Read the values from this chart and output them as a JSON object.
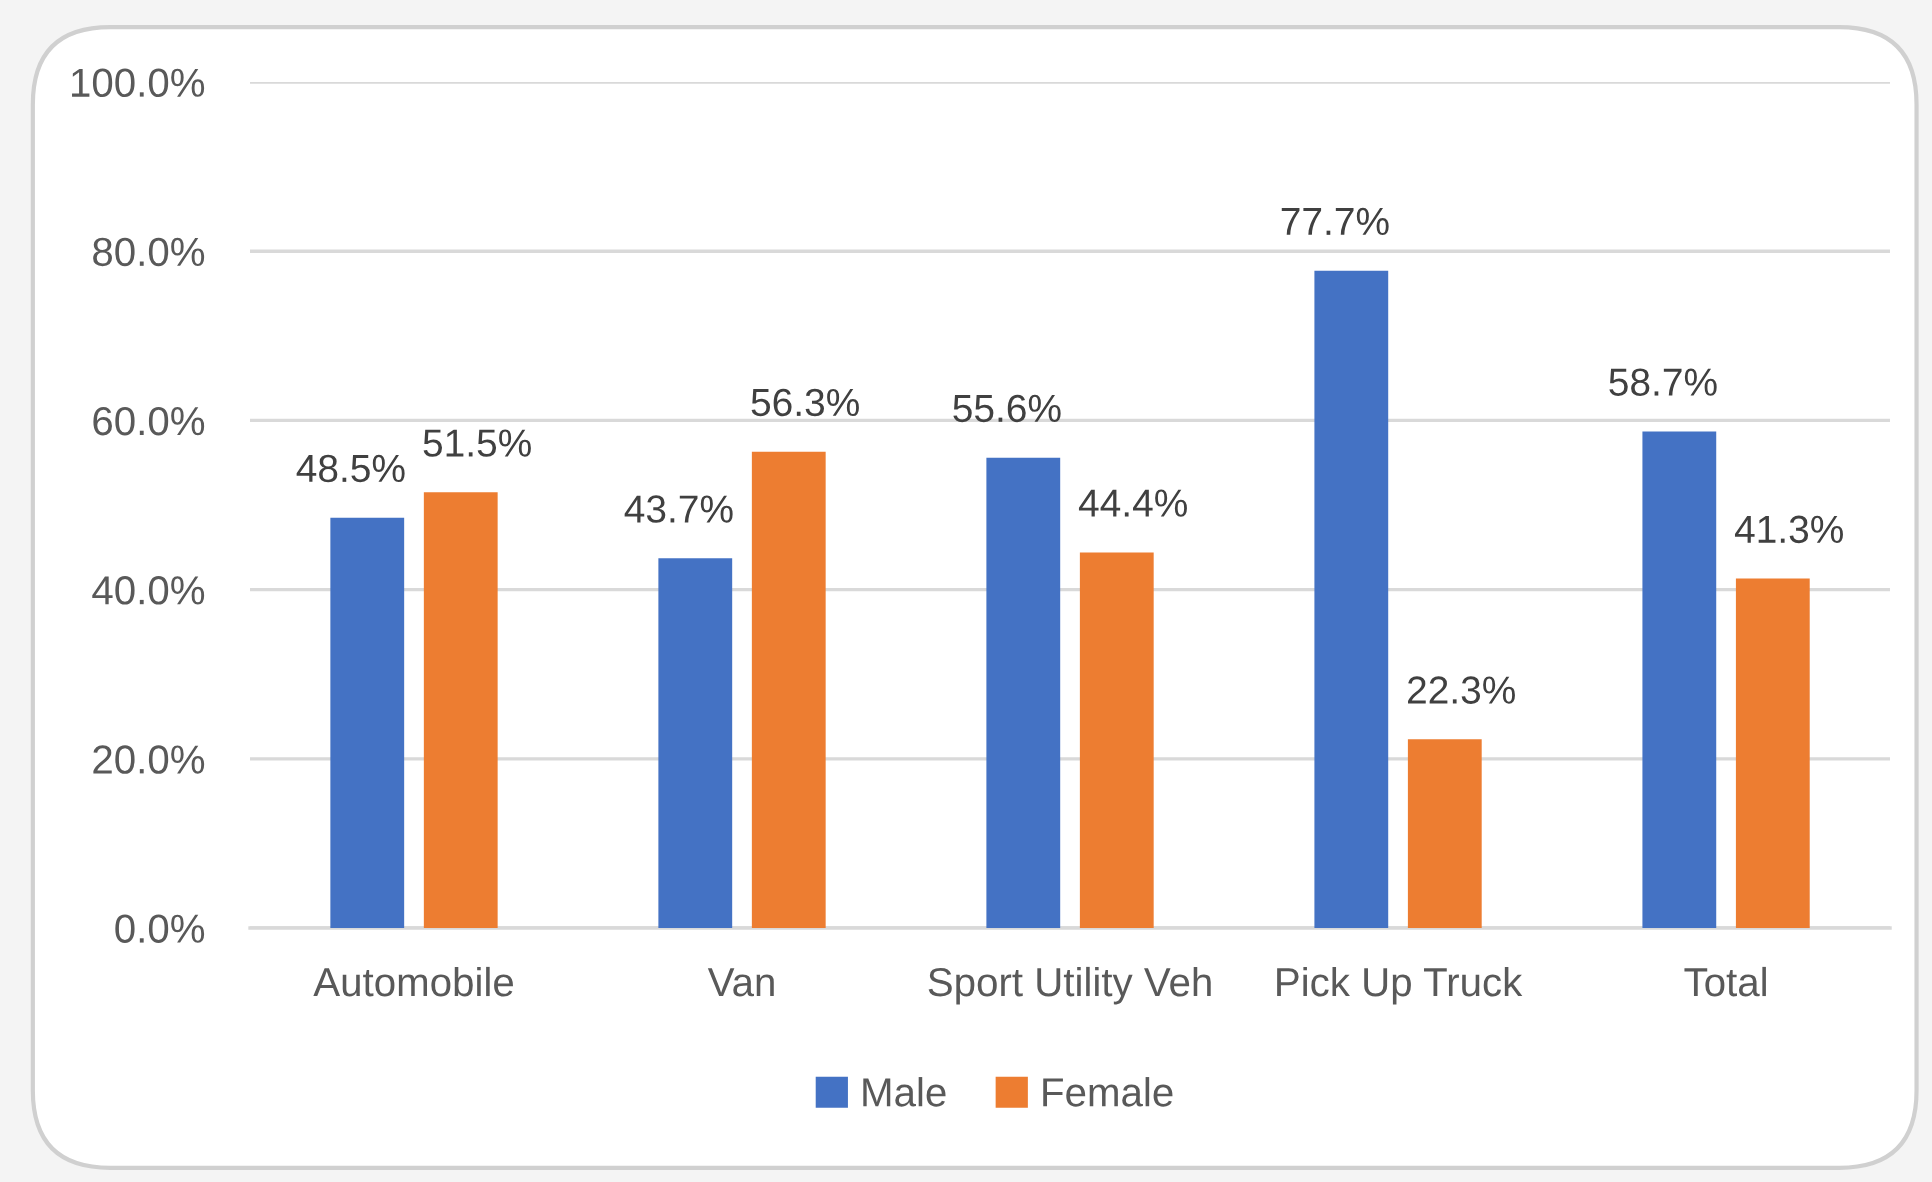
{
  "chart_data": {
    "type": "bar",
    "categories": [
      "Automobile",
      "Van",
      "Sport Utility Veh",
      "Pick Up Truck",
      "Total"
    ],
    "series": [
      {
        "name": "Male",
        "color": "#4472c4",
        "values": [
          48.5,
          43.7,
          55.6,
          77.7,
          58.7
        ],
        "value_labels": [
          "48.5%",
          "43.7%",
          "55.6%",
          "77.7%",
          "58.7%"
        ]
      },
      {
        "name": "Female",
        "color": "#ed7d31",
        "values": [
          51.5,
          56.3,
          44.4,
          22.3,
          41.3
        ],
        "value_labels": [
          "51.5%",
          "56.3%",
          "44.4%",
          "22.3%",
          "41.3%"
        ]
      }
    ],
    "ylim": [
      0,
      100
    ],
    "yticks": [
      {
        "value": 0,
        "label": "0.0%"
      },
      {
        "value": 20,
        "label": "20.0%"
      },
      {
        "value": 40,
        "label": "40.0%"
      },
      {
        "value": 60,
        "label": "60.0%"
      },
      {
        "value": 80,
        "label": "80.0%"
      },
      {
        "value": 100,
        "label": "100.0%"
      }
    ],
    "grid": "y",
    "legend": "bottom"
  }
}
